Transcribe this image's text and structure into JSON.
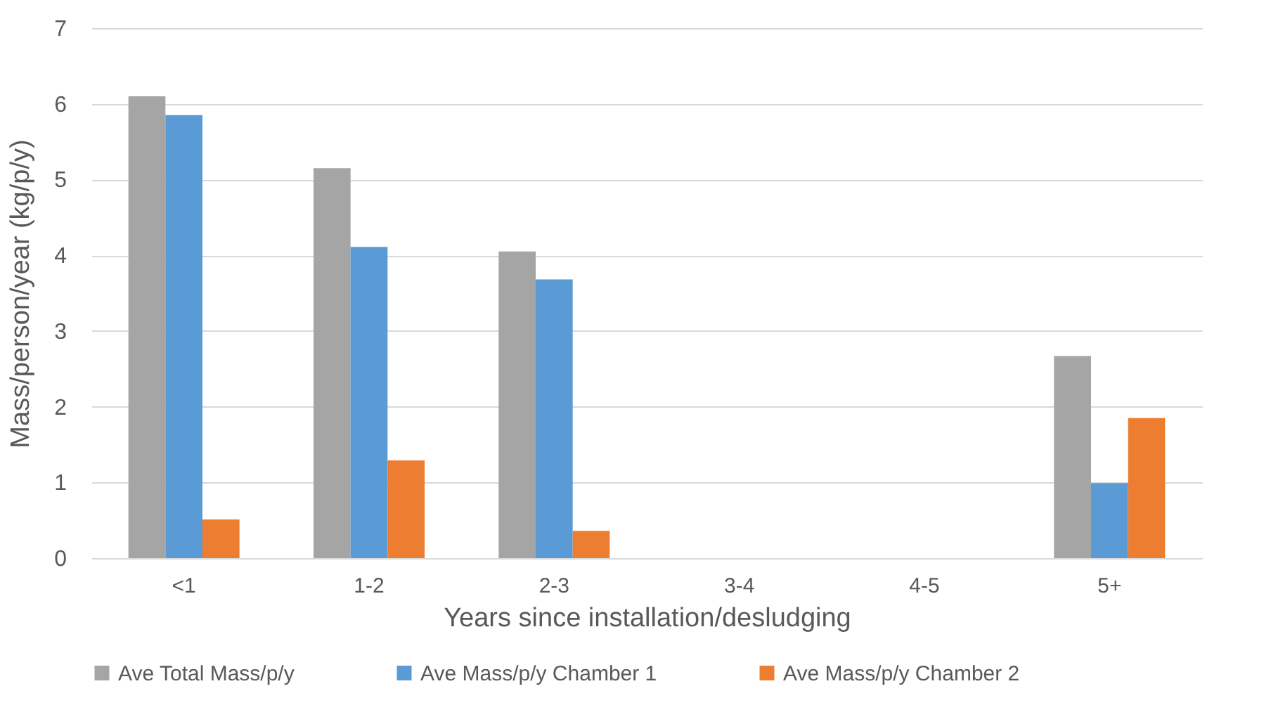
{
  "chart_data": {
    "type": "bar",
    "xlabel": "Years since installation/desludging",
    "ylabel": "Mass/person/year (kg/p/y)",
    "categories": [
      "<1",
      "1-2",
      "2-3",
      "3-4",
      "4-5",
      "5+"
    ],
    "series": [
      {
        "name": "Ave Total Mass/p/y",
        "color": "#a5a5a5",
        "values": [
          6.1,
          5.15,
          4.05,
          null,
          null,
          2.67
        ]
      },
      {
        "name": "Ave Mass/p/y Chamber 1",
        "color": "#5b9bd5",
        "values": [
          5.85,
          4.11,
          3.68,
          null,
          null,
          0.99
        ]
      },
      {
        "name": "Ave Mass/p/y Chamber 2",
        "color": "#ed7d31",
        "values": [
          0.51,
          1.29,
          0.36,
          null,
          null,
          1.85
        ]
      }
    ],
    "ylim": [
      0,
      7
    ],
    "yticks": [
      0,
      1,
      2,
      3,
      4,
      5,
      6,
      7
    ],
    "grid": "y",
    "legend": "bottom"
  }
}
